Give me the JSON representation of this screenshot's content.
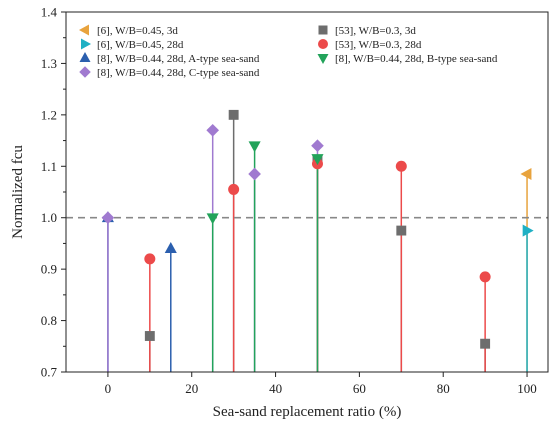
{
  "chart_data": {
    "type": "scatter",
    "xlabel": "Sea-sand replacement ratio (%)",
    "ylabel": "Normalized fcu",
    "xlim": [
      -10,
      105
    ],
    "ylim": [
      0.7,
      1.4
    ],
    "xticks": [
      0,
      20,
      40,
      60,
      80,
      100
    ],
    "yticks": [
      0.7,
      0.8,
      0.9,
      1.0,
      1.1,
      1.2,
      1.3,
      1.4
    ],
    "reference_line": 1.0,
    "stems_from": 0.7,
    "legend_position": "top",
    "series": [
      {
        "name": "[6], W/B=0.45, 3d",
        "marker": "triangle-left",
        "color": "#e8a33d",
        "x": [
          100
        ],
        "y": [
          1.085
        ]
      },
      {
        "name": "[6], W/B=0.45, 28d",
        "marker": "triangle-right",
        "color": "#1fb0c4",
        "x": [
          100
        ],
        "y": [
          0.975
        ]
      },
      {
        "name": "[8], W/B=0.44, 28d, A-type sea-sand",
        "marker": "triangle-up",
        "color": "#2b5fae",
        "x": [
          0,
          15
        ],
        "y": [
          1.0,
          0.94
        ]
      },
      {
        "name": "[8], W/B=0.44, 28d, C-type sea-sand",
        "marker": "diamond",
        "color": "#a07ad0",
        "x": [
          0,
          25,
          35,
          50
        ],
        "y": [
          1.0,
          1.17,
          1.085,
          1.14
        ]
      },
      {
        "name": "[53], W/B=0.3, 3d",
        "marker": "square",
        "color": "#6d6d6d",
        "x": [
          10,
          30,
          50,
          70,
          90
        ],
        "y": [
          0.77,
          1.2,
          1.11,
          0.975,
          0.755
        ]
      },
      {
        "name": "[53], W/B=0.3, 28d",
        "marker": "circle",
        "color": "#ec4a4a",
        "x": [
          10,
          30,
          50,
          70,
          90
        ],
        "y": [
          0.92,
          1.055,
          1.105,
          1.1,
          0.885
        ]
      },
      {
        "name": "[8], W/B=0.44, 28d, B-type sea-sand",
        "marker": "triangle-down",
        "color": "#22a35a",
        "x": [
          25,
          35,
          50
        ],
        "y": [
          1.0,
          1.14,
          1.115
        ]
      }
    ]
  }
}
